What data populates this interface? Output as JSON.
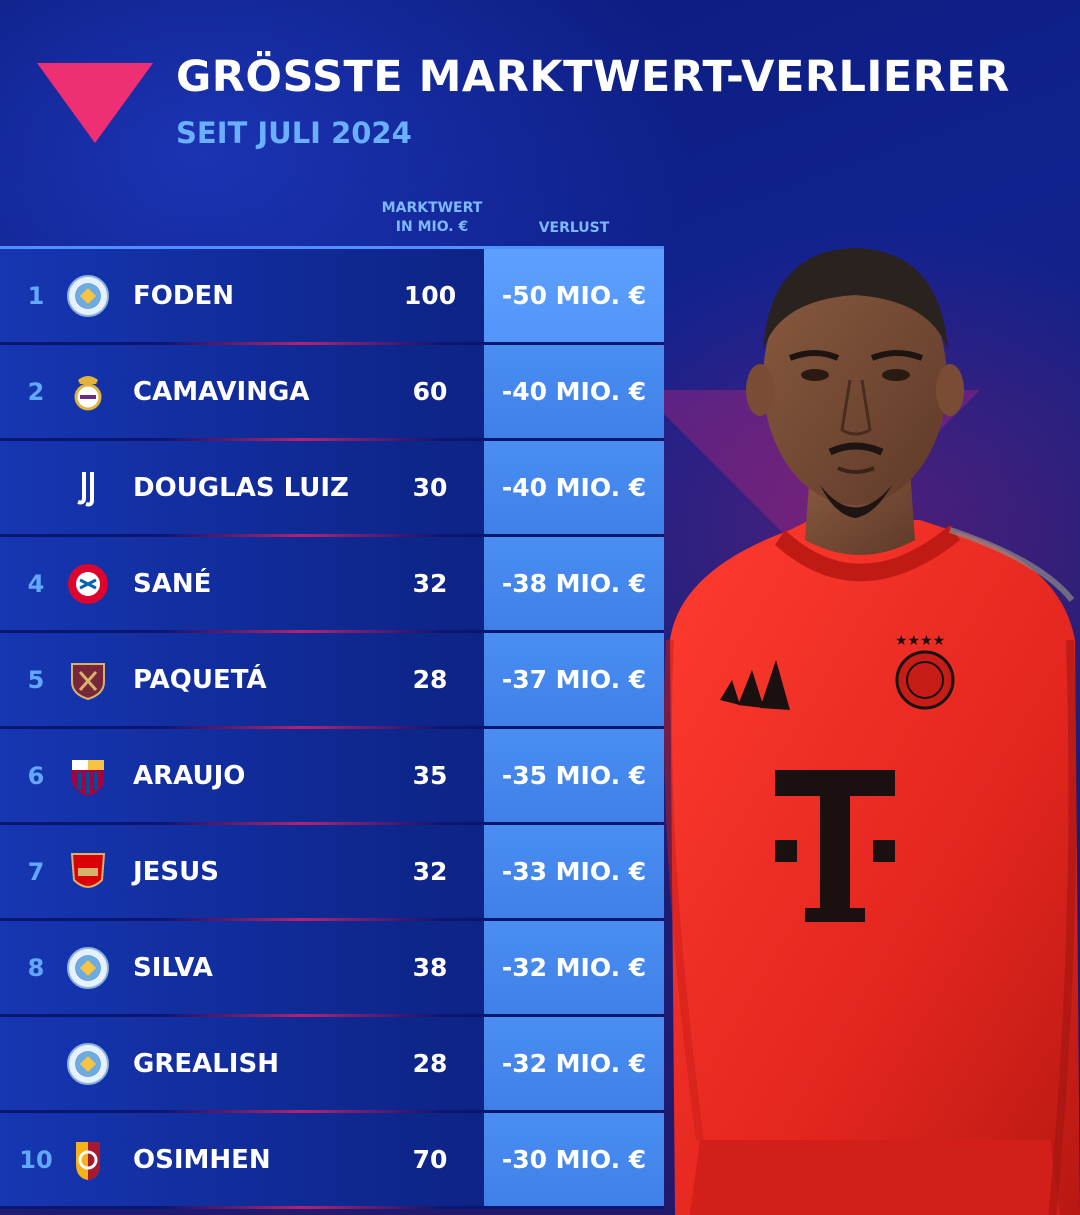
{
  "title": "GRÖSSTE MARKTWERT-VERLIERER",
  "subtitle": "SEIT JULI 2024",
  "columns": {
    "marktwert_line1": "MARKTWERT",
    "marktwert_line2": "IN MIO. €",
    "verlust": "VERLUST"
  },
  "colors": {
    "background": "#0b1f86",
    "accent_pink": "#ef2f74",
    "loss_cell": "#4a8ef2",
    "rank_text": "#62a8ff"
  },
  "chart_data": {
    "type": "table",
    "title": "GRÖSSTE MARKTWERT-VERLIERER",
    "subtitle": "SEIT JULI 2024",
    "headers": [
      "MARKTWERT IN MIO. €",
      "VERLUST"
    ],
    "rows": [
      {
        "rank": "1",
        "club_icon": "manchester-city-crest-icon",
        "player": "FODEN",
        "marktwert": 100,
        "verlust_label": "-50 MIO. €",
        "verlust": -50
      },
      {
        "rank": "2",
        "club_icon": "real-madrid-crest-icon",
        "player": "CAMAVINGA",
        "marktwert": 60,
        "verlust_label": "-40 MIO. €",
        "verlust": -40
      },
      {
        "rank": "",
        "club_icon": "juventus-crest-icon",
        "player": "DOUGLAS LUIZ",
        "marktwert": 30,
        "verlust_label": "-40 MIO. €",
        "verlust": -40
      },
      {
        "rank": "4",
        "club_icon": "bayern-munich-crest-icon",
        "player": "SANÉ",
        "marktwert": 32,
        "verlust_label": "-38 MIO. €",
        "verlust": -38
      },
      {
        "rank": "5",
        "club_icon": "west-ham-crest-icon",
        "player": "PAQUETÁ",
        "marktwert": 28,
        "verlust_label": "-37 MIO. €",
        "verlust": -37
      },
      {
        "rank": "6",
        "club_icon": "barcelona-crest-icon",
        "player": "ARAUJO",
        "marktwert": 35,
        "verlust_label": "-35 MIO. €",
        "verlust": -35
      },
      {
        "rank": "7",
        "club_icon": "arsenal-crest-icon",
        "player": "JESUS",
        "marktwert": 32,
        "verlust_label": "-33 MIO. €",
        "verlust": -33
      },
      {
        "rank": "8",
        "club_icon": "manchester-city-crest-icon",
        "player": "SILVA",
        "marktwert": 38,
        "verlust_label": "-32 MIO. €",
        "verlust": -32
      },
      {
        "rank": "",
        "club_icon": "manchester-city-crest-icon",
        "player": "GREALISH",
        "marktwert": 28,
        "verlust_label": "-32 MIO. €",
        "verlust": -32
      },
      {
        "rank": "10",
        "club_icon": "galatasaray-crest-icon",
        "player": "OSIMHEN",
        "marktwert": 70,
        "verlust_label": "-30 MIO. €",
        "verlust": -30
      }
    ]
  }
}
